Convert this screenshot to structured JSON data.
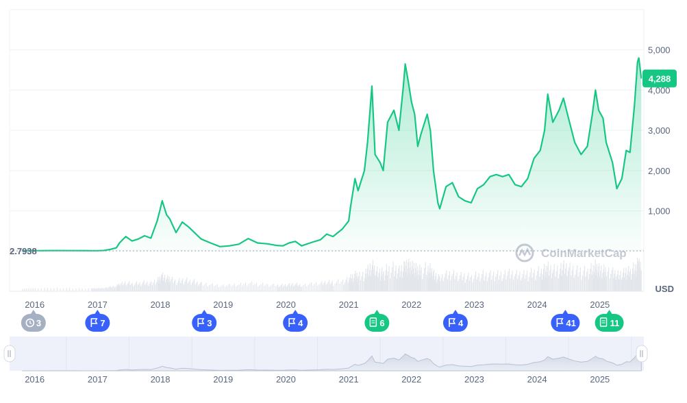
{
  "chart_data": {
    "type": "area",
    "unit": "USD",
    "y_ticks": [
      "5,000",
      "4,000",
      "3,000",
      "2,000",
      "1,000"
    ],
    "y_tick_values": [
      5000,
      4000,
      3000,
      2000,
      1000
    ],
    "ylim": [
      -1000,
      6000
    ],
    "x_ticks": [
      "2016",
      "2017",
      "2018",
      "2019",
      "2020",
      "2021",
      "2022",
      "2023",
      "2024",
      "2025"
    ],
    "x_tick_values": [
      2016,
      2017,
      2018,
      2019,
      2020,
      2021,
      2022,
      2023,
      2024,
      2025
    ],
    "xlim": [
      2015.6,
      2025.7
    ],
    "start_price_label": "2.7938",
    "start_price": 2.7938,
    "current_price_label": "4,288",
    "current_price": 4288,
    "grid": true,
    "line_color": "#16c784",
    "series": [
      {
        "points": [
          [
            2015.8,
            3
          ],
          [
            2016.0,
            8
          ],
          [
            2016.3,
            12
          ],
          [
            2016.6,
            10
          ],
          [
            2016.9,
            8
          ],
          [
            2017.0,
            9
          ],
          [
            2017.1,
            13
          ],
          [
            2017.2,
            40
          ],
          [
            2017.3,
            80
          ],
          [
            2017.35,
            200
          ],
          [
            2017.45,
            360
          ],
          [
            2017.55,
            250
          ],
          [
            2017.65,
            300
          ],
          [
            2017.75,
            380
          ],
          [
            2017.85,
            320
          ],
          [
            2017.95,
            750
          ],
          [
            2018.0,
            1050
          ],
          [
            2018.03,
            1250
          ],
          [
            2018.1,
            900
          ],
          [
            2018.15,
            800
          ],
          [
            2018.25,
            460
          ],
          [
            2018.35,
            720
          ],
          [
            2018.45,
            600
          ],
          [
            2018.55,
            450
          ],
          [
            2018.65,
            300
          ],
          [
            2018.8,
            200
          ],
          [
            2018.95,
            110
          ],
          [
            2019.1,
            130
          ],
          [
            2019.25,
            170
          ],
          [
            2019.4,
            310
          ],
          [
            2019.55,
            200
          ],
          [
            2019.7,
            180
          ],
          [
            2019.85,
            140
          ],
          [
            2019.95,
            130
          ],
          [
            2020.05,
            200
          ],
          [
            2020.15,
            240
          ],
          [
            2020.25,
            130
          ],
          [
            2020.4,
            210
          ],
          [
            2020.55,
            280
          ],
          [
            2020.65,
            420
          ],
          [
            2020.75,
            360
          ],
          [
            2020.9,
            550
          ],
          [
            2021.0,
            750
          ],
          [
            2021.03,
            1100
          ],
          [
            2021.1,
            1800
          ],
          [
            2021.15,
            1500
          ],
          [
            2021.25,
            2000
          ],
          [
            2021.3,
            2700
          ],
          [
            2021.37,
            4100
          ],
          [
            2021.42,
            2400
          ],
          [
            2021.5,
            2200
          ],
          [
            2021.55,
            2000
          ],
          [
            2021.62,
            3200
          ],
          [
            2021.72,
            3500
          ],
          [
            2021.8,
            3000
          ],
          [
            2021.87,
            4100
          ],
          [
            2021.9,
            4650
          ],
          [
            2021.95,
            4200
          ],
          [
            2022.0,
            3700
          ],
          [
            2022.05,
            3400
          ],
          [
            2022.1,
            2600
          ],
          [
            2022.15,
            2900
          ],
          [
            2022.25,
            3400
          ],
          [
            2022.3,
            3000
          ],
          [
            2022.35,
            2000
          ],
          [
            2022.42,
            1200
          ],
          [
            2022.45,
            1050
          ],
          [
            2022.55,
            1600
          ],
          [
            2022.65,
            1700
          ],
          [
            2022.75,
            1350
          ],
          [
            2022.85,
            1250
          ],
          [
            2022.95,
            1200
          ],
          [
            2023.05,
            1550
          ],
          [
            2023.15,
            1650
          ],
          [
            2023.25,
            1850
          ],
          [
            2023.35,
            1900
          ],
          [
            2023.45,
            1850
          ],
          [
            2023.55,
            1900
          ],
          [
            2023.65,
            1650
          ],
          [
            2023.75,
            1600
          ],
          [
            2023.85,
            1800
          ],
          [
            2023.95,
            2300
          ],
          [
            2024.05,
            2500
          ],
          [
            2024.12,
            3000
          ],
          [
            2024.17,
            3900
          ],
          [
            2024.25,
            3200
          ],
          [
            2024.35,
            3500
          ],
          [
            2024.42,
            3800
          ],
          [
            2024.5,
            3300
          ],
          [
            2024.6,
            2700
          ],
          [
            2024.7,
            2400
          ],
          [
            2024.8,
            2600
          ],
          [
            2024.88,
            3400
          ],
          [
            2024.93,
            4000
          ],
          [
            2024.98,
            3500
          ],
          [
            2025.05,
            3300
          ],
          [
            2025.1,
            2700
          ],
          [
            2025.2,
            2200
          ],
          [
            2025.27,
            1550
          ],
          [
            2025.35,
            1800
          ],
          [
            2025.42,
            2500
          ],
          [
            2025.48,
            2450
          ],
          [
            2025.55,
            3600
          ],
          [
            2025.6,
            4700
          ],
          [
            2025.62,
            4800
          ],
          [
            2025.66,
            4288
          ]
        ]
      }
    ],
    "volume_note": "volume bars shown below price"
  },
  "markers": [
    {
      "kind": "clock",
      "label": "3",
      "x": 2015.98,
      "color": "#a6b0c3"
    },
    {
      "kind": "flag",
      "label": "7",
      "x": 2017.0,
      "color": "#3861fb"
    },
    {
      "kind": "flag",
      "label": "3",
      "x": 2018.7,
      "color": "#3861fb"
    },
    {
      "kind": "flag",
      "label": "4",
      "x": 2020.15,
      "color": "#3861fb"
    },
    {
      "kind": "doc",
      "label": "6",
      "x": 2021.45,
      "color": "#16c784"
    },
    {
      "kind": "flag",
      "label": "4",
      "x": 2022.7,
      "color": "#3861fb"
    },
    {
      "kind": "flag",
      "label": "41",
      "x": 2024.45,
      "color": "#3861fb"
    },
    {
      "kind": "doc",
      "label": "11",
      "x": 2025.15,
      "color": "#16c784"
    }
  ],
  "watermark": "CoinMarketCap",
  "navigator_ticks": [
    "2016",
    "2017",
    "2018",
    "2019",
    "2020",
    "2021",
    "2022",
    "2023",
    "2024",
    "2025"
  ]
}
